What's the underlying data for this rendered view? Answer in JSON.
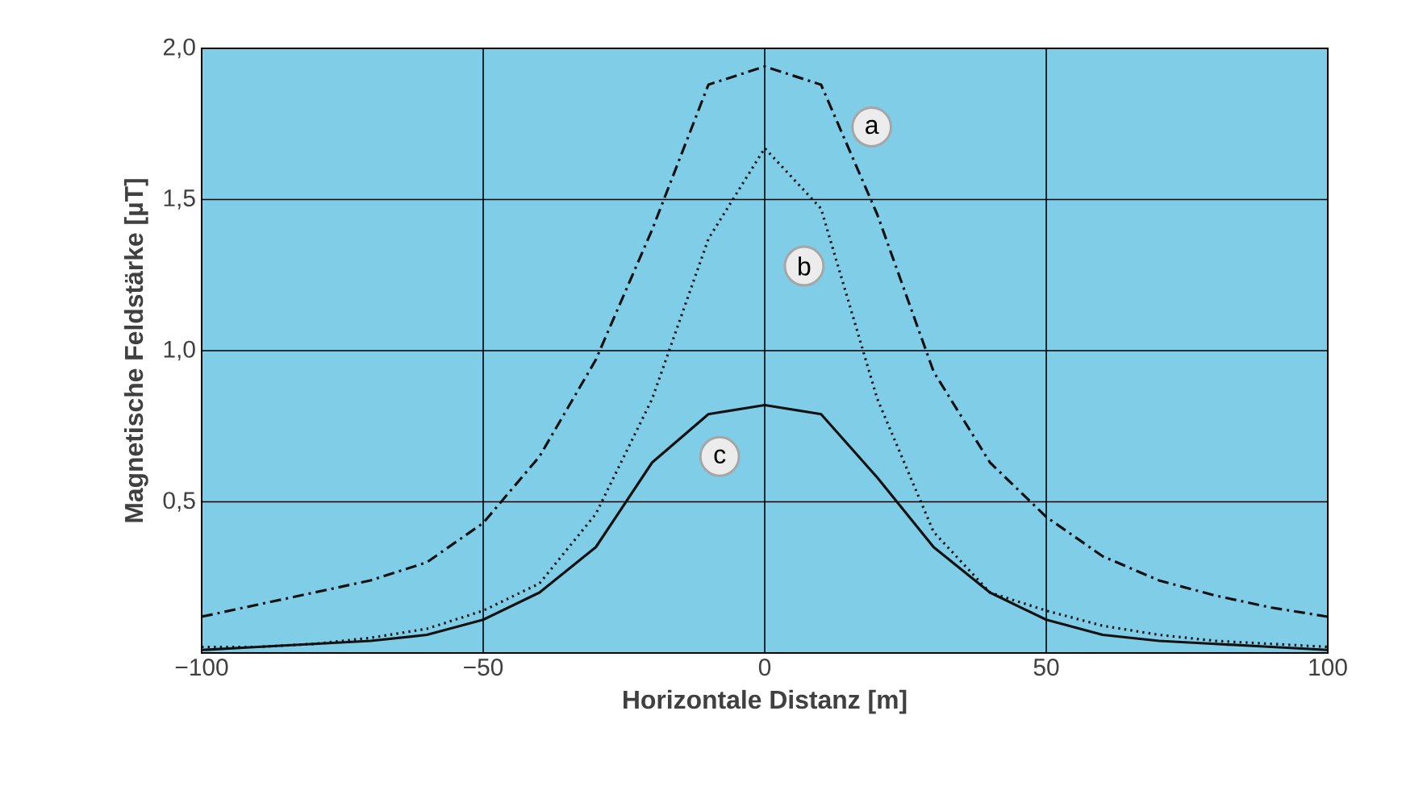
{
  "chart_data": {
    "type": "line",
    "xlabel": "Horizontale Distanz  [m]",
    "ylabel": "Magnetische Feldstärke  [µT]",
    "x": [
      -100,
      -90,
      -80,
      -70,
      -60,
      -50,
      -40,
      -30,
      -20,
      -10,
      0,
      10,
      20,
      30,
      40,
      50,
      60,
      70,
      80,
      90,
      100
    ],
    "series": [
      {
        "color": "#111111",
        "line_style": "dashdot",
        "values": [
          0.12,
          0.16,
          0.2,
          0.24,
          0.3,
          0.43,
          0.65,
          0.97,
          1.4,
          1.88,
          1.94,
          1.88,
          1.45,
          0.93,
          0.63,
          0.45,
          0.32,
          0.24,
          0.19,
          0.15,
          0.12
        ]
      },
      {
        "color": "#111111",
        "line_style": "dotted",
        "values": [
          0.02,
          0.02,
          0.03,
          0.05,
          0.08,
          0.14,
          0.23,
          0.46,
          0.84,
          1.37,
          1.67,
          1.47,
          0.84,
          0.4,
          0.2,
          0.14,
          0.09,
          0.06,
          0.04,
          0.03,
          0.02
        ]
      },
      {
        "color": "#111111",
        "line_style": "solid",
        "values": [
          0.01,
          0.02,
          0.03,
          0.04,
          0.06,
          0.11,
          0.2,
          0.35,
          0.63,
          0.79,
          0.82,
          0.79,
          0.58,
          0.35,
          0.2,
          0.11,
          0.06,
          0.04,
          0.03,
          0.02,
          0.01
        ]
      }
    ],
    "annotations": [
      {
        "text": "a",
        "x": 19,
        "y": 1.74
      },
      {
        "text": "b",
        "x": 7,
        "y": 1.28
      },
      {
        "text": "c",
        "x": -8,
        "y": 0.65
      }
    ],
    "xlim": [
      -100,
      100
    ],
    "ylim": [
      0,
      2
    ],
    "xticks": [
      {
        "value": -100,
        "label": "−100"
      },
      {
        "value": -50,
        "label": "−50"
      },
      0,
      50,
      100
    ],
    "yticks": [
      {
        "value": 0.5,
        "label": "0,5"
      },
      {
        "value": 1,
        "label": "1,0"
      },
      {
        "value": 1.5,
        "label": "1,5"
      },
      {
        "value": 2,
        "label": "2,0"
      }
    ],
    "grid": true
  }
}
